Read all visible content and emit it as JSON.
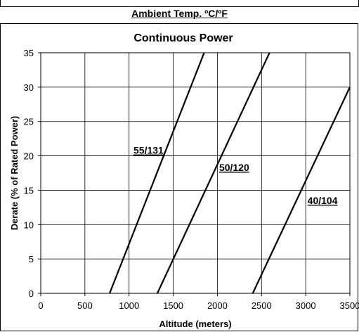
{
  "header": {
    "section_title": "Ambient Temp. ºC/ºF"
  },
  "chart_data": {
    "type": "line",
    "title": "Continuous Power",
    "xlabel": "Altitude (meters)",
    "ylabel": "Derate (% of Rated Power)",
    "xlim": [
      0,
      3500
    ],
    "ylim": [
      0,
      35
    ],
    "xticks": [
      0,
      500,
      1000,
      1500,
      2000,
      2500,
      3000,
      3500
    ],
    "yticks": [
      0,
      5,
      10,
      15,
      20,
      25,
      30,
      35
    ],
    "grid": true,
    "series": [
      {
        "name": "55/131",
        "x": [
          780,
          1850
        ],
        "y": [
          0,
          35
        ]
      },
      {
        "name": "50/120",
        "x": [
          1320,
          2590
        ],
        "y": [
          0,
          35
        ]
      },
      {
        "name": "40/104",
        "x": [
          2400,
          3500
        ],
        "y": [
          0,
          30
        ]
      }
    ],
    "line_color": "#000000"
  }
}
